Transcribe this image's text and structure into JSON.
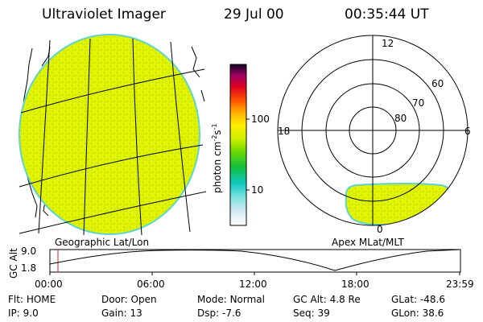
{
  "header": {
    "instrument": "Ultraviolet Imager",
    "date": "29 Jul 00",
    "time": "00:35:44 UT"
  },
  "left_panel": {
    "label": "Geographic Lat/Lon"
  },
  "right_panel": {
    "label": "Apex MLat/MLT",
    "mlt_labels": [
      "12",
      "18",
      "6",
      "0"
    ],
    "mlat_labels": [
      "60",
      "70",
      "80"
    ]
  },
  "colorbar": {
    "unit_label": "photon cm",
    "unit_sup1": "-2",
    "unit_mid": "s",
    "unit_sup2": "-1",
    "tick_100": "100",
    "tick_10": "10"
  },
  "altitude_plot": {
    "axis_label": "GC Alt",
    "y_top": "9.0",
    "y_bottom": "1.8",
    "x_ticks": [
      "00:00",
      "06:00",
      "12:00",
      "18:00",
      "23:59"
    ]
  },
  "status": {
    "row1": [
      {
        "key": "Flt:",
        "val": "HOME"
      },
      {
        "key": "Door:",
        "val": "Open"
      },
      {
        "key": "Mode:",
        "val": "Normal"
      },
      {
        "key": "GC Alt:",
        "val": "4.8 Re"
      },
      {
        "key": "GLat:",
        "val": "-48.6"
      }
    ],
    "row2": [
      {
        "key": "IP:",
        "val": "9.0"
      },
      {
        "key": "Gain:",
        "val": "13"
      },
      {
        "key": "Dsp:",
        "val": "-7.6"
      },
      {
        "key": "Seq:",
        "val": "39"
      },
      {
        "key": "GLon:",
        "val": "38.6"
      }
    ]
  },
  "colors": {
    "emission_fill": "#dff200",
    "emission_edge": "#5fd4d0"
  }
}
